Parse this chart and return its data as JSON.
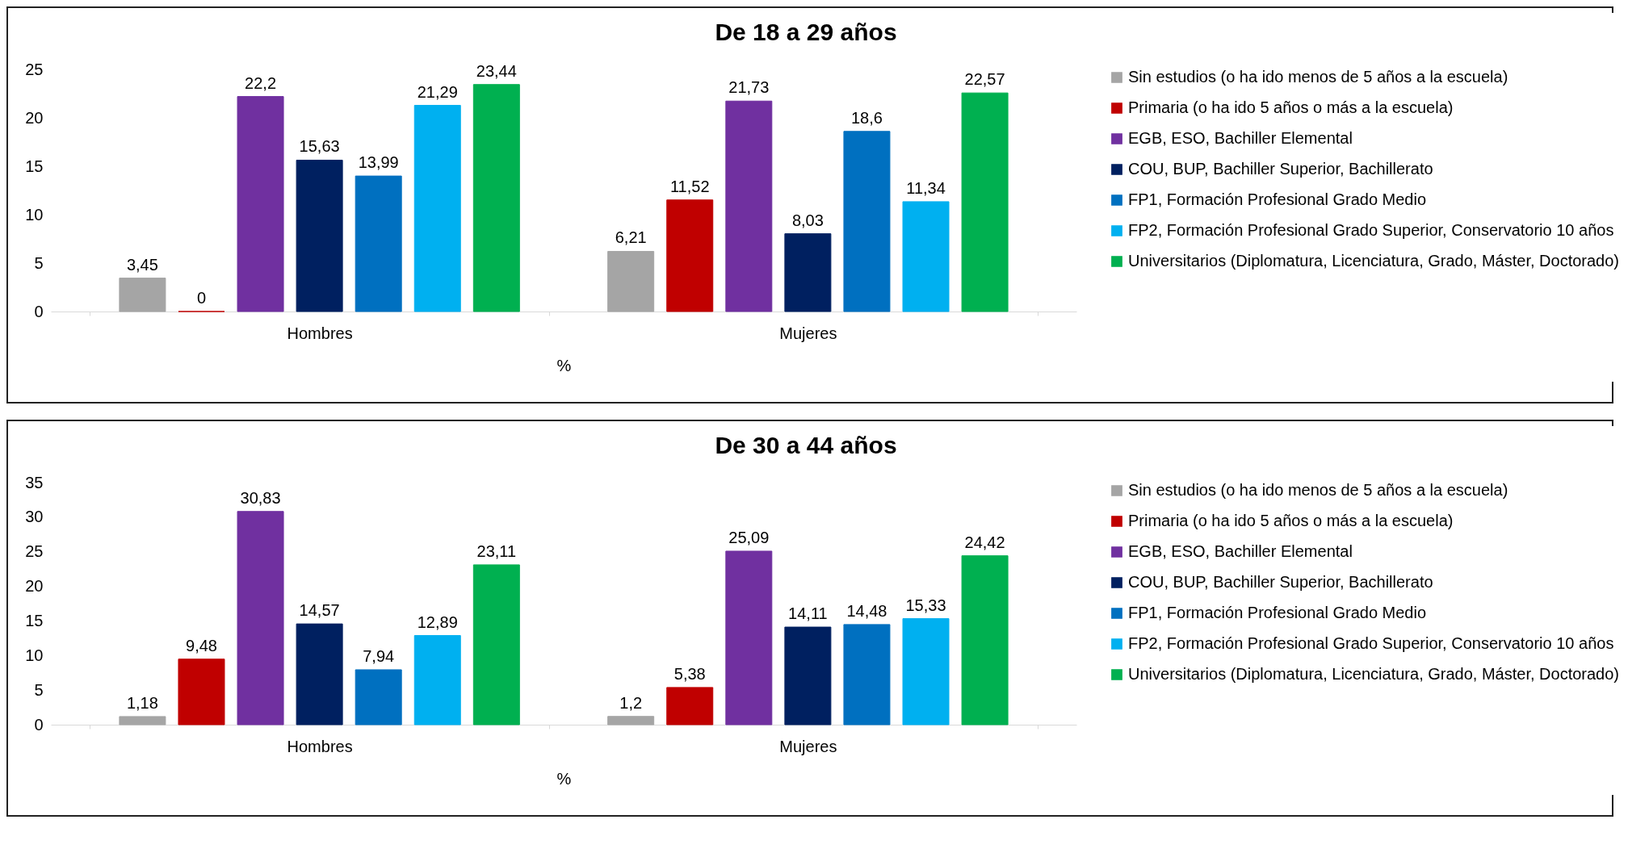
{
  "chart_data": [
    {
      "type": "bar",
      "title": "De 18 a 29 años",
      "xlabel": "%",
      "categories": [
        "Hombres",
        "Mujeres"
      ],
      "ylim": [
        0,
        25
      ],
      "yticks": [
        0,
        5,
        10,
        15,
        20,
        25
      ],
      "grid": false,
      "legend": "right",
      "series": [
        {
          "name": "Sin estudios (o ha ido menos de 5 años a la escuela)",
          "color": "#a5a5a5",
          "values": [
            3.45,
            6.21
          ],
          "value_labels": [
            "3,45",
            "6,21"
          ]
        },
        {
          "name": "Primaria (o ha ido 5 años o más a la escuela)",
          "color": "#c00000",
          "values": [
            0,
            11.52
          ],
          "value_labels": [
            "0",
            "11,52"
          ]
        },
        {
          "name": "EGB, ESO, Bachiller Elemental",
          "color": "#7030a0",
          "values": [
            22.2,
            21.73
          ],
          "value_labels": [
            "22,2",
            "21,73"
          ]
        },
        {
          "name": "COU, BUP, Bachiller Superior, Bachillerato",
          "color": "#002060",
          "values": [
            15.63,
            8.03
          ],
          "value_labels": [
            "15,63",
            "8,03"
          ]
        },
        {
          "name": "FP1, Formación Profesional Grado Medio",
          "color": "#0070c0",
          "values": [
            13.99,
            18.6
          ],
          "value_labels": [
            "13,99",
            "18,6"
          ]
        },
        {
          "name": "FP2, Formación Profesional Grado Superior, Conservatorio 10 años",
          "color": "#00b0f0",
          "values": [
            21.29,
            11.34
          ],
          "value_labels": [
            "21,29",
            "11,34"
          ]
        },
        {
          "name": "Universitarios (Diplomatura, Licenciatura, Grado, Máster, Doctorado)",
          "color": "#00b050",
          "values": [
            23.44,
            22.57
          ],
          "value_labels": [
            "23,44",
            "22,57"
          ]
        }
      ]
    },
    {
      "type": "bar",
      "title": "De 30 a 44 años",
      "xlabel": "%",
      "categories": [
        "Hombres",
        "Mujeres"
      ],
      "ylim": [
        0,
        35
      ],
      "yticks": [
        0,
        5,
        10,
        15,
        20,
        25,
        30,
        35
      ],
      "grid": false,
      "legend": "right",
      "series": [
        {
          "name": "Sin estudios (o ha ido menos de 5 años a la escuela)",
          "color": "#a5a5a5",
          "values": [
            1.18,
            1.2
          ],
          "value_labels": [
            "1,18",
            "1,2"
          ]
        },
        {
          "name": "Primaria (o ha ido 5 años o más a la escuela)",
          "color": "#c00000",
          "values": [
            9.48,
            5.38
          ],
          "value_labels": [
            "9,48",
            "5,38"
          ]
        },
        {
          "name": "EGB, ESO, Bachiller Elemental",
          "color": "#7030a0",
          "values": [
            30.83,
            25.09
          ],
          "value_labels": [
            "30,83",
            "25,09"
          ]
        },
        {
          "name": "COU, BUP, Bachiller Superior, Bachillerato",
          "color": "#002060",
          "values": [
            14.57,
            14.11
          ],
          "value_labels": [
            "14,57",
            "14,11"
          ]
        },
        {
          "name": "FP1, Formación Profesional Grado Medio",
          "color": "#0070c0",
          "values": [
            7.94,
            14.48
          ],
          "value_labels": [
            "7,94",
            "14,48"
          ]
        },
        {
          "name": "FP2, Formación Profesional Grado Superior, Conservatorio 10 años",
          "color": "#00b0f0",
          "values": [
            12.89,
            15.33
          ],
          "value_labels": [
            "12,89",
            "15,33"
          ]
        },
        {
          "name": "Universitarios (Diplomatura, Licenciatura, Grado, Máster, Doctorado)",
          "color": "#00b050",
          "values": [
            23.11,
            24.42
          ],
          "value_labels": [
            "23,11",
            "24,42"
          ]
        }
      ]
    }
  ]
}
